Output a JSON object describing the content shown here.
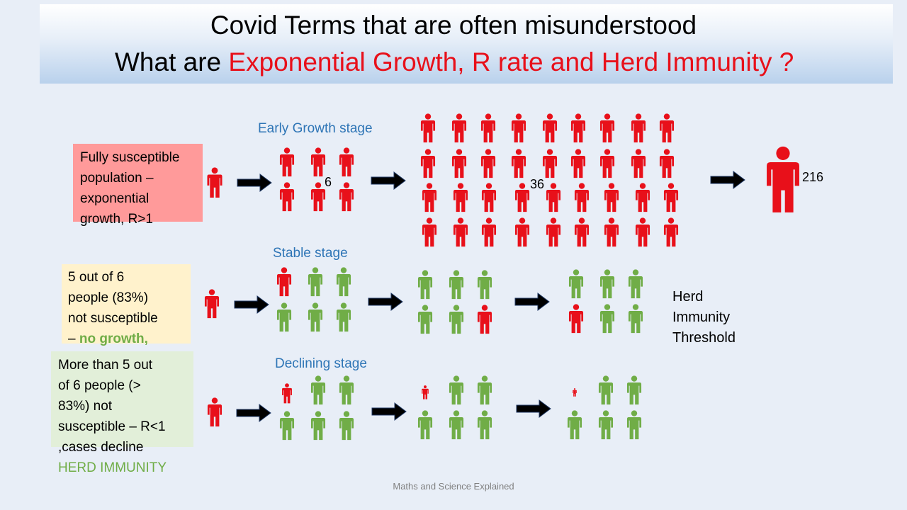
{
  "title": {
    "line1": "Covid Terms that are often misunderstood",
    "line2_prefix": "What are ",
    "line2_highlight": "Exponential Growth, R rate and Herd Immunity ?"
  },
  "stages": {
    "early": "Early Growth stage",
    "stable": "Stable stage",
    "declining": "Declining stage"
  },
  "boxes": {
    "susceptible": [
      "Fully susceptible",
      "population –",
      "exponential",
      "growth, R>1"
    ],
    "stable_lines": [
      "5 out of 6",
      "people (83%)",
      "not susceptible"
    ],
    "stable_dash": "– ",
    "stable_green": "no growth,",
    "declining": [
      "More than 5 out",
      "of 6 people (>",
      "83%) not",
      "susceptible – R<1",
      ",cases decline"
    ],
    "declining_green": "HERD IMMUNITY"
  },
  "counts": {
    "six": "6",
    "thirty_six": "36",
    "two_sixteen": "216"
  },
  "herd_threshold": [
    "Herd",
    "Immunity",
    "Threshold"
  ],
  "footer": "Maths and Science Explained",
  "colors": {
    "infected": "#e8101a",
    "immune": "#70ad47",
    "stage_label": "#2e75b6",
    "arrow": "#000000"
  }
}
